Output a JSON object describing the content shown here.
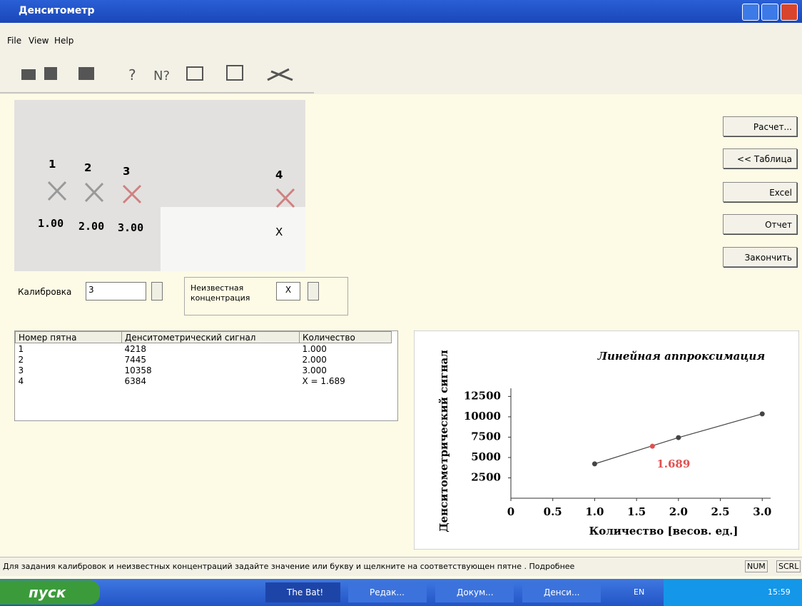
{
  "window": {
    "title": "Денситометр"
  },
  "menu": [
    "File",
    "View",
    "Help"
  ],
  "image": {
    "spots": [
      "1",
      "2",
      "3",
      "4"
    ],
    "amounts": [
      "1.00",
      "2.00",
      "3.00",
      "X"
    ]
  },
  "buttons": [
    "Расчет...",
    "<< Таблица",
    "Excel",
    "Отчет",
    "Закончить"
  ],
  "form": {
    "calibration_label": "Калибровка",
    "calibration_value": "3",
    "unknown_label": "Неизвестная концентрация",
    "unknown_value": "X"
  },
  "table": {
    "header": [
      "Номер пятна",
      "Денситометрический сигнал",
      "Количество"
    ],
    "rows": [
      [
        "1",
        "4218",
        "1.000"
      ],
      [
        "2",
        "7445",
        "2.000"
      ],
      [
        "3",
        "10358",
        "3.000"
      ],
      [
        "4",
        "6384",
        "X = 1.689"
      ]
    ]
  },
  "chart_data": {
    "type": "line",
    "title": "Линейная аппроксимация",
    "x_label": "Количество [весов. ед.]",
    "y_label": "Денситометрический сигнал",
    "x": [
      1,
      2,
      3
    ],
    "series": [
      {
        "color": "#444444",
        "values": [
          4218,
          7445,
          10358
        ]
      }
    ],
    "unknown": {
      "x": 1.689,
      "value": 6384,
      "color": "#e05050"
    },
    "xlim": [
      0,
      3.1
    ],
    "ylim": [
      0,
      13500
    ],
    "xticks": [
      0,
      0.5,
      {
        "value": 1,
        "label": "1.0"
      },
      1.5,
      {
        "value": 2,
        "label": "2.0"
      },
      2.5,
      {
        "value": 3,
        "label": "3.0"
      }
    ],
    "yticks": [
      2500,
      5000,
      7500,
      10000,
      12500
    ],
    "grid": false
  },
  "status": {
    "message": "Для задания калибровок и неизвестных концентраций задайте значение или букву и щелкните на соответствующен пятне . Подробнее",
    "indicators": [
      "NUM",
      "SCRL"
    ]
  },
  "taskbar": {
    "start": "пуск",
    "tasks": [
      "The Bat!",
      "Редак...",
      "Докум...",
      "Денси..."
    ],
    "language": "EN",
    "clock": "15:59"
  }
}
